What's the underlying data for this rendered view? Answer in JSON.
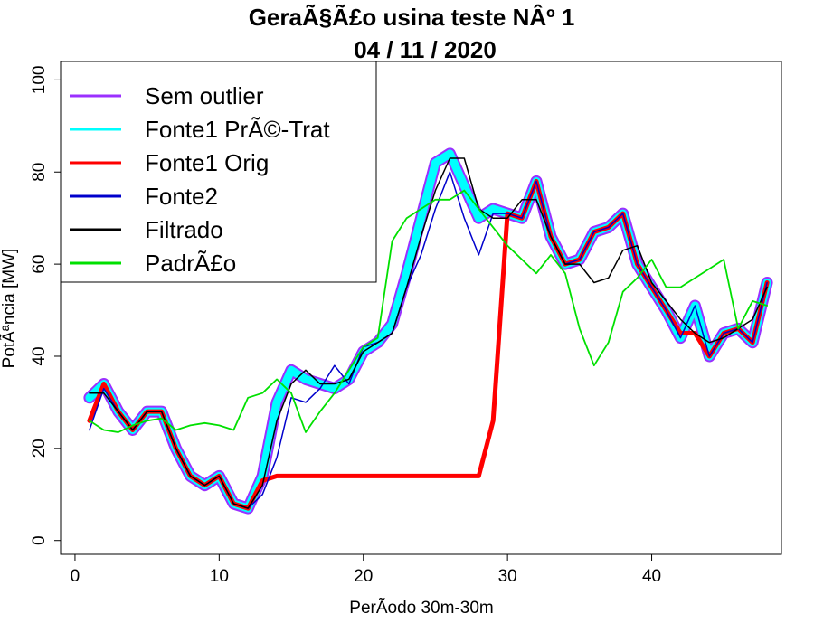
{
  "chart_data": {
    "type": "line",
    "title": "GeraÃ§Ã£o usina teste NÂº 1",
    "subtitle": "04 / 11 / 2020",
    "xlabel": "PerÃ­odo 30m-30m",
    "ylabel": "PotÃªncia [MW]",
    "xlim": [
      -1,
      49
    ],
    "ylim": [
      -3,
      104
    ],
    "xticks": [
      0,
      10,
      20,
      30,
      40
    ],
    "yticks": [
      0,
      20,
      40,
      60,
      80,
      100
    ],
    "grid": false,
    "legend_position": "top-left",
    "x": [
      1,
      2,
      3,
      4,
      5,
      6,
      7,
      8,
      9,
      10,
      11,
      12,
      13,
      14,
      15,
      16,
      17,
      18,
      19,
      20,
      21,
      22,
      23,
      24,
      25,
      26,
      27,
      28,
      29,
      30,
      31,
      32,
      33,
      34,
      35,
      36,
      37,
      38,
      39,
      40,
      41,
      42,
      43,
      44,
      45,
      46,
      47,
      48
    ],
    "series": [
      {
        "name": "Sem outlier",
        "color": "#9b30ff",
        "values": [
          31,
          34,
          28,
          24,
          28,
          28,
          20,
          14,
          12,
          14,
          8,
          7,
          14,
          30,
          37,
          35,
          34,
          33,
          35,
          41,
          43,
          47,
          58,
          70,
          82,
          84,
          77,
          70,
          72,
          71,
          70,
          78,
          66,
          60,
          61,
          67,
          68,
          71,
          60,
          55,
          50,
          44,
          51,
          40,
          45,
          46,
          43,
          56
        ]
      },
      {
        "name": "Fonte1 PrÃ©-Trat",
        "color": "#00ffff",
        "values": [
          31,
          34,
          28,
          24,
          28,
          28,
          20,
          14,
          12,
          14,
          8,
          7,
          14,
          30,
          37,
          35,
          34,
          33,
          35,
          41,
          43,
          47,
          58,
          70,
          82,
          84,
          77,
          70,
          72,
          71,
          70,
          78,
          66,
          60,
          61,
          67,
          68,
          71,
          60,
          55,
          50,
          44,
          51,
          40,
          45,
          46,
          43,
          56
        ]
      },
      {
        "name": "Fonte1 Orig",
        "color": "#ff0000",
        "values": [
          26,
          34,
          28,
          24,
          28,
          28,
          20,
          14,
          12,
          14,
          8,
          7,
          13,
          14,
          14,
          14,
          14,
          14,
          14,
          14,
          14,
          14,
          14,
          14,
          14,
          14,
          14,
          14,
          26,
          71,
          70,
          78,
          66,
          60,
          61,
          67,
          68,
          71,
          60,
          55,
          50,
          45,
          45,
          40,
          45,
          46,
          43,
          56
        ]
      },
      {
        "name": "Fonte2",
        "color": "#0000cc",
        "values": [
          24,
          33,
          28,
          24,
          28,
          28,
          20,
          14,
          12,
          14,
          8,
          7,
          10,
          18,
          31,
          30,
          33,
          38,
          34,
          42,
          43,
          45,
          55,
          62,
          72,
          80,
          70,
          62,
          71,
          71,
          70,
          78,
          66,
          60,
          61,
          67,
          68,
          71,
          60,
          55,
          50,
          44,
          51,
          40,
          45,
          46,
          43,
          56
        ]
      },
      {
        "name": "Filtrado",
        "color": "#000000",
        "values": [
          32,
          32,
          28,
          24,
          28,
          28,
          20,
          14,
          12,
          14,
          8,
          7,
          12,
          26,
          34,
          37,
          34,
          34,
          35,
          41,
          43,
          45,
          55,
          66,
          76,
          83,
          83,
          72,
          70,
          70,
          74,
          74,
          66,
          60,
          60,
          56,
          57,
          63,
          64,
          56,
          52,
          48,
          45,
          43,
          44,
          46,
          48,
          55
        ]
      },
      {
        "name": "PadrÃ£o",
        "color": "#00e000",
        "values": [
          26,
          24,
          23.5,
          25,
          26,
          26.5,
          24,
          25,
          25.5,
          25,
          24,
          31,
          32,
          35,
          32,
          23.5,
          28,
          32,
          37,
          42,
          44,
          65,
          70,
          72,
          74,
          74,
          76,
          72,
          68,
          64,
          61,
          58,
          62,
          58,
          46,
          38,
          43,
          54,
          57,
          61,
          55,
          55,
          57,
          59,
          61,
          46,
          52,
          51
        ]
      }
    ]
  }
}
